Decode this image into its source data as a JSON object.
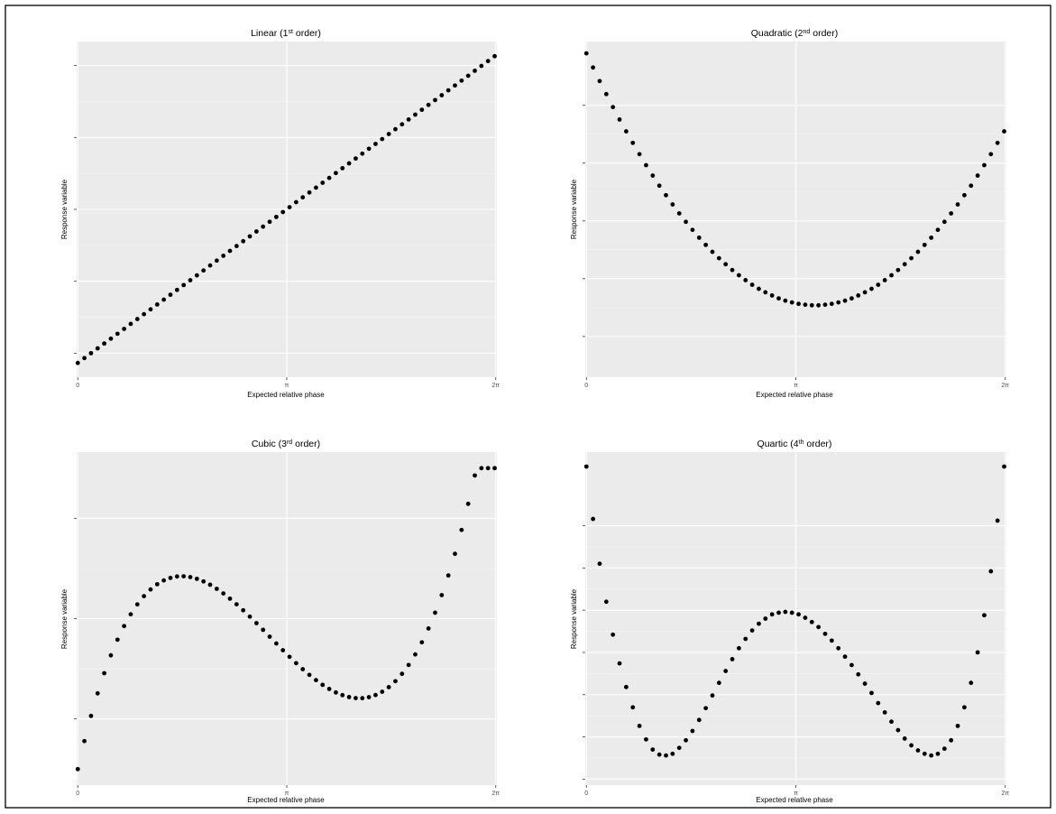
{
  "figure": {
    "colors": {
      "panel_bg": "#ebebeb",
      "grid": "#ffffff",
      "point": "#000000",
      "frame": "#000000"
    }
  },
  "chart_data": [
    {
      "type": "scatter",
      "title_main": "Linear (1",
      "title_sup": "st",
      "title_tail": " order)",
      "xlabel": "Expected relative phase",
      "ylabel": "Response variable",
      "x_tick_labels": [
        "0",
        "π",
        "2π"
      ],
      "x_ticks": [
        0,
        3.14159,
        6.28319
      ],
      "xlim": [
        0,
        6.28319
      ],
      "y_ticks": [
        -0.8,
        -0.4,
        0,
        0.4,
        0.8
      ],
      "ylim": [
        -0.9,
        0.9
      ],
      "grid": true,
      "x": [
        0,
        0.0995,
        0.1989,
        0.2984,
        0.3979,
        0.4974,
        0.5968,
        0.6963,
        0.7958,
        0.8952,
        0.9947,
        1.0942,
        1.1937,
        1.2931,
        1.3926,
        1.4921,
        1.5915,
        1.691,
        1.7905,
        1.89,
        1.9894,
        2.0889,
        2.1884,
        2.2878,
        2.3873,
        2.4868,
        2.5863,
        2.6857,
        2.7852,
        2.8847,
        2.9841,
        3.0836,
        3.1831,
        3.2826,
        3.382,
        3.4815,
        3.581,
        3.6804,
        3.7799,
        3.8794,
        3.9789,
        4.0783,
        4.1778,
        4.2773,
        4.3767,
        4.4762,
        4.5757,
        4.6752,
        4.7746,
        4.8741,
        4.9736,
        5.073,
        5.1725,
        5.272,
        5.3715,
        5.4709,
        5.5704,
        5.6699,
        5.7694,
        5.8688,
        5.9683,
        6.0678,
        6.1672,
        6.2667
      ],
      "y": [
        -0.854,
        -0.827,
        -0.8,
        -0.773,
        -0.746,
        -0.719,
        -0.692,
        -0.665,
        -0.637,
        -0.61,
        -0.583,
        -0.556,
        -0.529,
        -0.502,
        -0.475,
        -0.448,
        -0.421,
        -0.394,
        -0.367,
        -0.34,
        -0.312,
        -0.285,
        -0.258,
        -0.231,
        -0.204,
        -0.177,
        -0.15,
        -0.123,
        -0.096,
        -0.069,
        -0.042,
        -0.015,
        0.012,
        0.04,
        0.067,
        0.094,
        0.121,
        0.148,
        0.175,
        0.202,
        0.229,
        0.256,
        0.283,
        0.31,
        0.337,
        0.364,
        0.391,
        0.419,
        0.446,
        0.473,
        0.5,
        0.527,
        0.554,
        0.581,
        0.608,
        0.635,
        0.662,
        0.689,
        0.716,
        0.743,
        0.771,
        0.798,
        0.825,
        0.852
      ]
    },
    {
      "type": "scatter",
      "title_main": "Quadratic (2",
      "title_sup": "nd",
      "title_tail": " order)",
      "xlabel": "Expected relative phase",
      "ylabel": "Response variable",
      "x_tick_labels": [
        "0",
        "π",
        "2π"
      ],
      "x_ticks": [
        0,
        3.14159,
        6.28319
      ],
      "xlim": [
        0,
        6.28319
      ],
      "y_ticks": [
        -0.2,
        0,
        0.2,
        0.4,
        0.6
      ],
      "ylim": [
        -0.32,
        0.8
      ],
      "grid": true,
      "x": [
        0,
        0.0995,
        0.1989,
        0.2984,
        0.3979,
        0.4974,
        0.5968,
        0.6963,
        0.7958,
        0.8952,
        0.9947,
        1.0942,
        1.1937,
        1.2931,
        1.3926,
        1.4921,
        1.5915,
        1.691,
        1.7905,
        1.89,
        1.9894,
        2.0889,
        2.1884,
        2.2878,
        2.3873,
        2.4868,
        2.5863,
        2.6857,
        2.7852,
        2.8847,
        2.9841,
        3.0836,
        3.1831,
        3.2826,
        3.382,
        3.4815,
        3.581,
        3.6804,
        3.7799,
        3.8794,
        3.9789,
        4.0783,
        4.1778,
        4.2773,
        4.3767,
        4.4762,
        4.5757,
        4.6752,
        4.7746,
        4.8741,
        4.9736,
        5.073,
        5.1725,
        5.272,
        5.3715,
        5.4709,
        5.5704,
        5.6699,
        5.7694,
        5.8688,
        5.9683,
        6.0678,
        6.1672,
        6.2667
      ],
      "y": [
        0.78,
        0.731,
        0.684,
        0.639,
        0.594,
        0.551,
        0.51,
        0.47,
        0.431,
        0.393,
        0.357,
        0.322,
        0.289,
        0.257,
        0.226,
        0.197,
        0.169,
        0.142,
        0.117,
        0.093,
        0.071,
        0.05,
        0.03,
        0.012,
        -0.005,
        -0.021,
        -0.035,
        -0.047,
        -0.058,
        -0.068,
        -0.076,
        -0.082,
        -0.087,
        -0.09,
        -0.092,
        -0.092,
        -0.09,
        -0.087,
        -0.082,
        -0.076,
        -0.068,
        -0.058,
        -0.047,
        -0.035,
        -0.021,
        -0.005,
        0.012,
        0.03,
        0.05,
        0.071,
        0.093,
        0.117,
        0.142,
        0.169,
        0.197,
        0.226,
        0.257,
        0.289,
        0.322,
        0.357,
        0.393,
        0.431,
        0.47,
        0.51
      ]
    },
    {
      "type": "scatter",
      "title_main": "Cubic (3",
      "title_sup": "rd",
      "title_tail": " order)",
      "xlabel": "Expected relative phase",
      "ylabel": "Response variable",
      "x_tick_labels": [
        "0",
        "π",
        "2π"
      ],
      "x_ticks": [
        0,
        3.14159,
        6.28319
      ],
      "xlim": [
        0,
        6.28319
      ],
      "y_ticks": [
        -1,
        0,
        1
      ],
      "ylim": [
        -1.6,
        1.6
      ],
      "grid": true,
      "x": [
        0,
        0.0995,
        0.1989,
        0.2984,
        0.3979,
        0.4974,
        0.5968,
        0.6963,
        0.7958,
        0.8952,
        0.9947,
        1.0942,
        1.1937,
        1.2931,
        1.3926,
        1.4921,
        1.5915,
        1.691,
        1.7905,
        1.89,
        1.9894,
        2.0889,
        2.1884,
        2.2878,
        2.3873,
        2.4868,
        2.5863,
        2.6857,
        2.7852,
        2.8847,
        2.9841,
        3.0836,
        3.1831,
        3.2826,
        3.382,
        3.4815,
        3.581,
        3.6804,
        3.7799,
        3.8794,
        3.9789,
        4.0783,
        4.1778,
        4.2773,
        4.3767,
        4.4762,
        4.5757,
        4.6752,
        4.7746,
        4.8741,
        4.9736,
        5.073,
        5.1725,
        5.272,
        5.3715,
        5.4709,
        5.5704,
        5.6699,
        5.7694,
        5.8688,
        5.9683,
        6.0678,
        6.1672,
        6.2667
      ],
      "y": [
        -1.5,
        -1.221,
        -0.97,
        -0.745,
        -0.544,
        -0.366,
        -0.21,
        -0.074,
        0.043,
        0.142,
        0.224,
        0.291,
        0.343,
        0.381,
        0.406,
        0.42,
        0.422,
        0.414,
        0.397,
        0.371,
        0.338,
        0.297,
        0.251,
        0.199,
        0.143,
        0.083,
        0.02,
        -0.045,
        -0.112,
        -0.18,
        -0.248,
        -0.315,
        -0.381,
        -0.444,
        -0.504,
        -0.561,
        -0.613,
        -0.66,
        -0.701,
        -0.736,
        -0.763,
        -0.782,
        -0.792,
        -0.793,
        -0.783,
        -0.762,
        -0.729,
        -0.683,
        -0.624,
        -0.55,
        -0.462,
        -0.357,
        -0.236,
        -0.098,
        0.059,
        0.234,
        0.43,
        0.646,
        0.884,
        1.144,
        1.427,
        1.5,
        1.5,
        1.5
      ]
    },
    {
      "type": "scatter",
      "title_main": "Quartic (4",
      "title_sup": "th",
      "title_tail": " order)",
      "xlabel": "Expected relative phase",
      "ylabel": "Response variable",
      "x_tick_labels": [
        "0",
        "π",
        "2π"
      ],
      "x_ticks": [
        0,
        3.14159,
        6.28319
      ],
      "xlim": [
        0,
        6.28319
      ],
      "y_ticks": [
        -1.5,
        -1,
        -0.5,
        0,
        0.5,
        1,
        1.5
      ],
      "ylim": [
        -1.5,
        2.3
      ],
      "grid": true,
      "x": [
        0,
        0.0995,
        0.1989,
        0.2984,
        0.3979,
        0.4974,
        0.5968,
        0.6963,
        0.7958,
        0.8952,
        0.9947,
        1.0942,
        1.1937,
        1.2931,
        1.3926,
        1.4921,
        1.5915,
        1.691,
        1.7905,
        1.89,
        1.9894,
        2.0889,
        2.1884,
        2.2878,
        2.3873,
        2.4868,
        2.5863,
        2.6857,
        2.7852,
        2.8847,
        2.9841,
        3.0836,
        3.1831,
        3.2826,
        3.382,
        3.4815,
        3.581,
        3.6804,
        3.7799,
        3.8794,
        3.9789,
        4.0783,
        4.1778,
        4.2773,
        4.3767,
        4.4762,
        4.5757,
        4.6752,
        4.7746,
        4.8741,
        4.9736,
        5.073,
        5.1725,
        5.272,
        5.3715,
        5.4709,
        5.5704,
        5.6699,
        5.7694,
        5.8688,
        5.9683,
        6.0678,
        6.1672,
        6.2667
      ],
      "y": [
        2.2,
        1.58,
        1.05,
        0.6,
        0.21,
        -0.13,
        -0.41,
        -0.65,
        -0.87,
        -1.03,
        -1.15,
        -1.21,
        -1.22,
        -1.2,
        -1.13,
        -1.04,
        -0.93,
        -0.8,
        -0.66,
        -0.51,
        -0.36,
        -0.22,
        -0.08,
        0.05,
        0.16,
        0.26,
        0.34,
        0.4,
        0.45,
        0.47,
        0.48,
        0.47,
        0.45,
        0.41,
        0.36,
        0.3,
        0.22,
        0.14,
        0.05,
        -0.05,
        -0.15,
        -0.26,
        -0.37,
        -0.48,
        -0.6,
        -0.71,
        -0.82,
        -0.92,
        -1.02,
        -1.1,
        -1.16,
        -1.2,
        -1.22,
        -1.2,
        -1.14,
        -1.04,
        -0.87,
        -0.65,
        -0.36,
        0.0,
        0.44,
        0.96,
        1.56,
        2.2
      ]
    }
  ]
}
